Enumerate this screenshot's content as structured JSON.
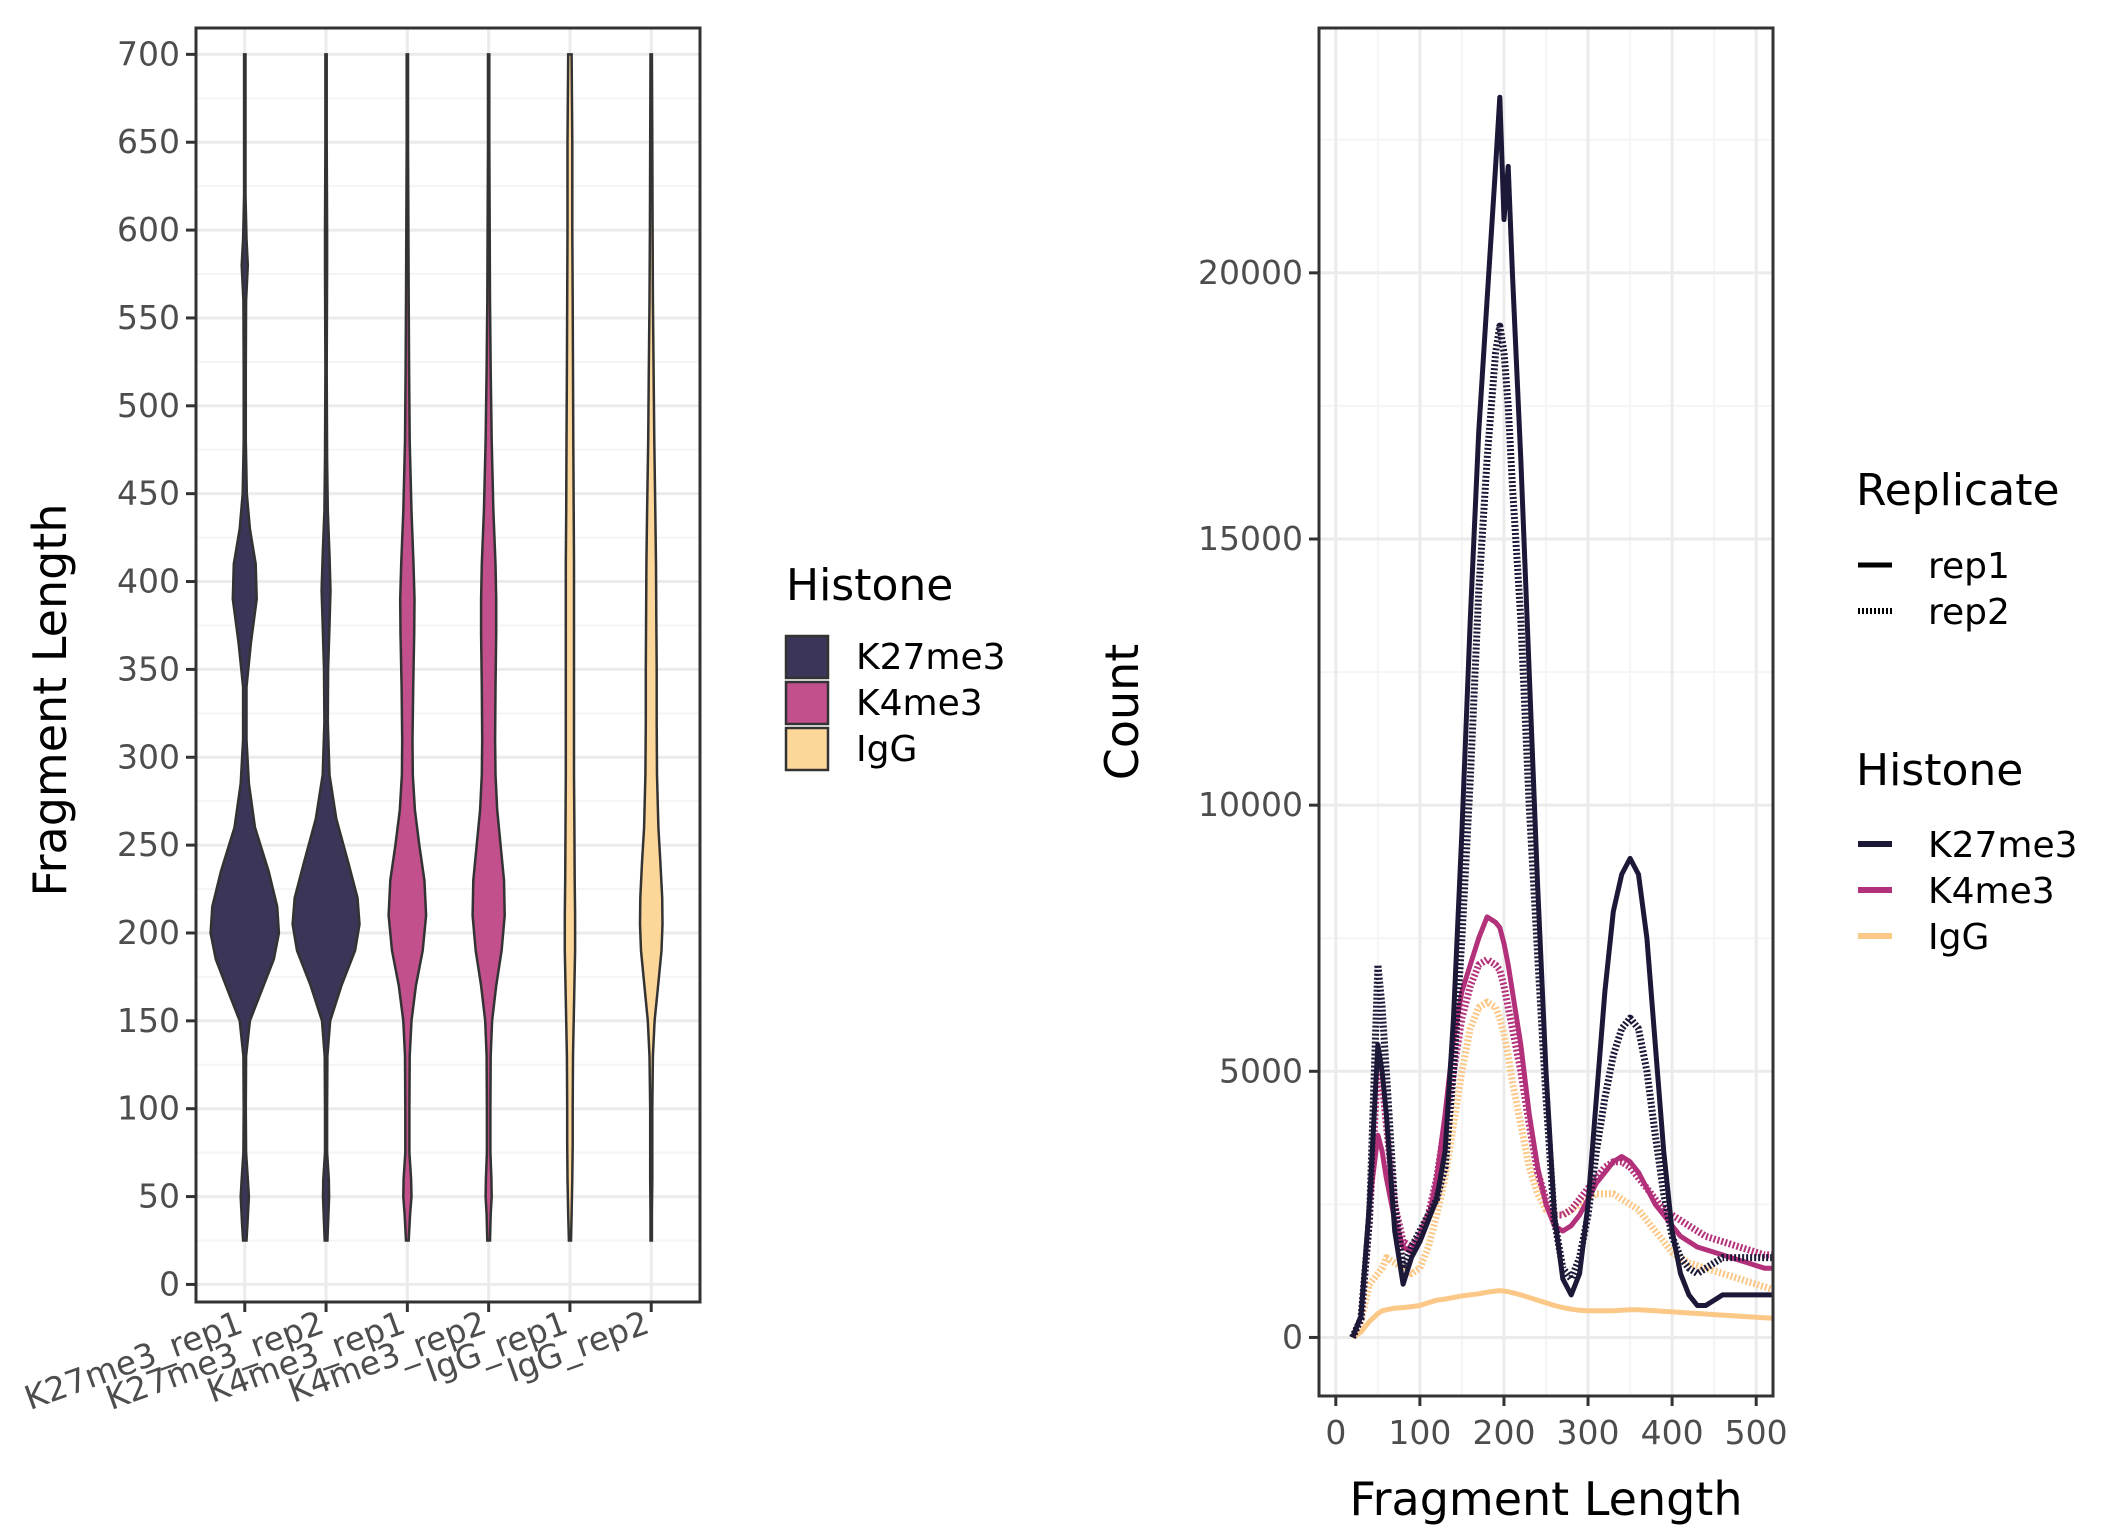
{
  "chart_data": [
    {
      "type": "violin",
      "ylabel": "Fragment Length",
      "xlabel": "",
      "ylim": [
        0,
        700
      ],
      "ylim_padded": [
        -10,
        715
      ],
      "yticks": [
        0,
        50,
        100,
        150,
        200,
        250,
        300,
        350,
        400,
        450,
        500,
        550,
        600,
        650,
        700
      ],
      "categories": [
        "K27me3_rep1",
        "K27me3_rep2",
        "K4me3_rep1",
        "K4me3_rep2",
        "IgG_rep1",
        "IgG_rep2"
      ],
      "category_histone": [
        "K27me3",
        "K27me3",
        "K4me3",
        "K4me3",
        "IgG",
        "IgG"
      ],
      "violin_range": [
        25,
        700
      ],
      "violin_max_halfwidth": 0.42,
      "violin_shapes": [
        [
          [
            25,
            0.05
          ],
          [
            35,
            0.08
          ],
          [
            50,
            0.12
          ],
          [
            60,
            0.09
          ],
          [
            75,
            0.04
          ],
          [
            100,
            0.03
          ],
          [
            130,
            0.04
          ],
          [
            150,
            0.15
          ],
          [
            165,
            0.45
          ],
          [
            185,
            0.85
          ],
          [
            200,
            1.0
          ],
          [
            215,
            0.95
          ],
          [
            235,
            0.7
          ],
          [
            260,
            0.3
          ],
          [
            285,
            0.12
          ],
          [
            310,
            0.05
          ],
          [
            340,
            0.05
          ],
          [
            365,
            0.18
          ],
          [
            390,
            0.35
          ],
          [
            410,
            0.32
          ],
          [
            430,
            0.15
          ],
          [
            450,
            0.06
          ],
          [
            480,
            0.03
          ],
          [
            520,
            0.03
          ],
          [
            560,
            0.04
          ],
          [
            580,
            0.09
          ],
          [
            595,
            0.05
          ],
          [
            620,
            0.02
          ],
          [
            650,
            0.02
          ],
          [
            700,
            0.02
          ]
        ],
        [
          [
            25,
            0.04
          ],
          [
            35,
            0.06
          ],
          [
            50,
            0.09
          ],
          [
            60,
            0.08
          ],
          [
            75,
            0.03
          ],
          [
            100,
            0.03
          ],
          [
            130,
            0.04
          ],
          [
            150,
            0.12
          ],
          [
            170,
            0.45
          ],
          [
            190,
            0.85
          ],
          [
            205,
            0.98
          ],
          [
            220,
            0.92
          ],
          [
            240,
            0.65
          ],
          [
            265,
            0.3
          ],
          [
            290,
            0.1
          ],
          [
            320,
            0.05
          ],
          [
            350,
            0.06
          ],
          [
            375,
            0.1
          ],
          [
            395,
            0.13
          ],
          [
            415,
            0.1
          ],
          [
            440,
            0.05
          ],
          [
            470,
            0.03
          ],
          [
            520,
            0.02
          ],
          [
            580,
            0.03
          ],
          [
            600,
            0.03
          ],
          [
            650,
            0.02
          ],
          [
            700,
            0.02
          ]
        ],
        [
          [
            25,
            0.04
          ],
          [
            40,
            0.08
          ],
          [
            50,
            0.12
          ],
          [
            60,
            0.11
          ],
          [
            75,
            0.06
          ],
          [
            100,
            0.06
          ],
          [
            130,
            0.07
          ],
          [
            150,
            0.12
          ],
          [
            170,
            0.25
          ],
          [
            190,
            0.45
          ],
          [
            210,
            0.55
          ],
          [
            230,
            0.5
          ],
          [
            250,
            0.35
          ],
          [
            270,
            0.22
          ],
          [
            290,
            0.16
          ],
          [
            310,
            0.15
          ],
          [
            340,
            0.17
          ],
          [
            370,
            0.2
          ],
          [
            390,
            0.21
          ],
          [
            410,
            0.18
          ],
          [
            440,
            0.12
          ],
          [
            480,
            0.07
          ],
          [
            520,
            0.05
          ],
          [
            560,
            0.04
          ],
          [
            600,
            0.03
          ],
          [
            650,
            0.02
          ],
          [
            700,
            0.02
          ]
        ],
        [
          [
            25,
            0.04
          ],
          [
            40,
            0.06
          ],
          [
            50,
            0.09
          ],
          [
            60,
            0.08
          ],
          [
            75,
            0.05
          ],
          [
            100,
            0.05
          ],
          [
            130,
            0.06
          ],
          [
            150,
            0.1
          ],
          [
            170,
            0.22
          ],
          [
            190,
            0.38
          ],
          [
            210,
            0.47
          ],
          [
            230,
            0.45
          ],
          [
            250,
            0.35
          ],
          [
            270,
            0.25
          ],
          [
            290,
            0.2
          ],
          [
            310,
            0.19
          ],
          [
            340,
            0.2
          ],
          [
            370,
            0.22
          ],
          [
            390,
            0.22
          ],
          [
            410,
            0.2
          ],
          [
            440,
            0.14
          ],
          [
            480,
            0.09
          ],
          [
            520,
            0.06
          ],
          [
            560,
            0.04
          ],
          [
            600,
            0.03
          ],
          [
            650,
            0.02
          ],
          [
            700,
            0.02
          ]
        ],
        [
          [
            25,
            0.03
          ],
          [
            40,
            0.05
          ],
          [
            60,
            0.07
          ],
          [
            80,
            0.08
          ],
          [
            100,
            0.08
          ],
          [
            130,
            0.09
          ],
          [
            150,
            0.11
          ],
          [
            170,
            0.13
          ],
          [
            190,
            0.15
          ],
          [
            210,
            0.15
          ],
          [
            230,
            0.14
          ],
          [
            260,
            0.13
          ],
          [
            290,
            0.12
          ],
          [
            320,
            0.12
          ],
          [
            350,
            0.12
          ],
          [
            380,
            0.12
          ],
          [
            410,
            0.12
          ],
          [
            440,
            0.11
          ],
          [
            480,
            0.1
          ],
          [
            520,
            0.09
          ],
          [
            560,
            0.08
          ],
          [
            600,
            0.07
          ],
          [
            650,
            0.07
          ],
          [
            700,
            0.05
          ]
        ],
        [
          [
            25,
            0.02
          ],
          [
            40,
            0.02
          ],
          [
            60,
            0.03
          ],
          [
            80,
            0.03
          ],
          [
            100,
            0.03
          ],
          [
            130,
            0.05
          ],
          [
            150,
            0.1
          ],
          [
            170,
            0.2
          ],
          [
            190,
            0.3
          ],
          [
            205,
            0.33
          ],
          [
            220,
            0.32
          ],
          [
            240,
            0.27
          ],
          [
            260,
            0.21
          ],
          [
            290,
            0.17
          ],
          [
            320,
            0.16
          ],
          [
            350,
            0.16
          ],
          [
            380,
            0.15
          ],
          [
            410,
            0.14
          ],
          [
            440,
            0.12
          ],
          [
            480,
            0.09
          ],
          [
            520,
            0.07
          ],
          [
            560,
            0.05
          ],
          [
            600,
            0.04
          ],
          [
            650,
            0.03
          ],
          [
            700,
            0.02
          ]
        ]
      ],
      "legend": {
        "title": "Histone",
        "items": [
          {
            "label": "K27me3",
            "color": "#3b3558"
          },
          {
            "label": "K4me3",
            "color": "#c1508d"
          },
          {
            "label": "IgG",
            "color": "#fdd79a"
          }
        ]
      },
      "grid": true
    },
    {
      "type": "line",
      "xlabel": "Fragment Length",
      "ylabel": "Count",
      "xlim": [
        -20,
        520
      ],
      "ylim": [
        -1100,
        24600
      ],
      "xticks": [
        0,
        100,
        200,
        300,
        400,
        500
      ],
      "yticks": [
        0,
        5000,
        10000,
        15000,
        20000
      ],
      "x": [
        20,
        30,
        40,
        50,
        55,
        60,
        70,
        80,
        90,
        100,
        110,
        120,
        130,
        140,
        150,
        160,
        170,
        180,
        190,
        195,
        200,
        205,
        210,
        220,
        230,
        240,
        250,
        260,
        270,
        280,
        290,
        300,
        310,
        320,
        330,
        340,
        350,
        360,
        370,
        380,
        390,
        400,
        410,
        420,
        430,
        440,
        450,
        460,
        470,
        480,
        490,
        500,
        510,
        520
      ],
      "series": [
        {
          "histone": "K27me3",
          "replicate": "rep1",
          "color": "#1c1838",
          "dash": "solid",
          "values": [
            0,
            400,
            2500,
            5500,
            5000,
            4200,
            2000,
            1000,
            1500,
            1800,
            2200,
            2600,
            3500,
            6000,
            9500,
            13500,
            17000,
            19500,
            22000,
            23300,
            21000,
            22000,
            20000,
            16500,
            12500,
            8500,
            5000,
            2300,
            1100,
            800,
            1200,
            2500,
            4500,
            6500,
            8000,
            8700,
            9000,
            8700,
            7500,
            5500,
            3500,
            2000,
            1200,
            800,
            600,
            600,
            700,
            800,
            800,
            800,
            800,
            800,
            800,
            800
          ]
        },
        {
          "histone": "K27me3",
          "replicate": "rep2",
          "color": "#1c1838",
          "dash": "dotted",
          "values": [
            0,
            350,
            2200,
            7000,
            6200,
            5000,
            2500,
            1300,
            1700,
            2000,
            2300,
            2600,
            3200,
            5000,
            7500,
            10500,
            14000,
            16500,
            18500,
            19000,
            18500,
            17500,
            16000,
            13500,
            10000,
            7200,
            4500,
            2200,
            1300,
            1100,
            1500,
            2300,
            3500,
            4500,
            5300,
            5800,
            6000,
            5800,
            5000,
            3800,
            2700,
            1900,
            1500,
            1300,
            1200,
            1300,
            1400,
            1500,
            1500,
            1500,
            1500,
            1500,
            1500,
            1500
          ]
        },
        {
          "histone": "K4me3",
          "replicate": "rep1",
          "color": "#b3317a",
          "dash": "solid",
          "values": [
            0,
            400,
            2500,
            3800,
            3500,
            3000,
            2200,
            1700,
            1600,
            1800,
            2200,
            3000,
            4200,
            5600,
            6500,
            7000,
            7500,
            7900,
            7800,
            7700,
            7400,
            7000,
            6500,
            5500,
            4200,
            3200,
            2500,
            2100,
            2000,
            2100,
            2300,
            2600,
            2900,
            3100,
            3300,
            3400,
            3300,
            3100,
            2800,
            2500,
            2300,
            2100,
            1900,
            1800,
            1700,
            1650,
            1600,
            1550,
            1500,
            1450,
            1400,
            1350,
            1300,
            1300
          ]
        },
        {
          "histone": "K4me3",
          "replicate": "rep2",
          "color": "#b3317a",
          "dash": "dotted",
          "values": [
            0,
            350,
            2200,
            5200,
            4800,
            4000,
            2500,
            1800,
            1700,
            1900,
            2300,
            3000,
            4000,
            5000,
            6000,
            6600,
            7000,
            7100,
            7000,
            6900,
            6600,
            6200,
            5800,
            5000,
            4000,
            3100,
            2600,
            2300,
            2300,
            2400,
            2600,
            2800,
            3000,
            3200,
            3300,
            3300,
            3200,
            3000,
            2800,
            2600,
            2400,
            2300,
            2200,
            2100,
            2000,
            1900,
            1850,
            1800,
            1750,
            1700,
            1650,
            1600,
            1550,
            1550
          ]
        },
        {
          "histone": "IgG",
          "replicate": "rep1",
          "color": "#fcc888",
          "dash": "solid",
          "values": [
            0,
            100,
            300,
            450,
            500,
            520,
            550,
            560,
            580,
            600,
            650,
            700,
            720,
            750,
            780,
            800,
            820,
            850,
            870,
            880,
            870,
            860,
            840,
            800,
            750,
            700,
            650,
            600,
            560,
            530,
            510,
            500,
            500,
            500,
            500,
            510,
            520,
            520,
            510,
            500,
            490,
            480,
            470,
            460,
            450,
            440,
            430,
            420,
            410,
            400,
            390,
            380,
            370,
            360
          ]
        },
        {
          "histone": "IgG",
          "replicate": "rep2",
          "color": "#fcc888",
          "dash": "dotted",
          "values": [
            0,
            300,
            1000,
            1200,
            1300,
            1500,
            1400,
            1300,
            1200,
            1300,
            1700,
            2300,
            3000,
            4000,
            5000,
            5800,
            6200,
            6300,
            6200,
            6000,
            5700,
            5300,
            4800,
            4000,
            3200,
            2700,
            2400,
            2300,
            2300,
            2400,
            2500,
            2600,
            2700,
            2700,
            2700,
            2600,
            2500,
            2400,
            2200,
            2000,
            1800,
            1600,
            1500,
            1400,
            1350,
            1300,
            1250,
            1200,
            1150,
            1100,
            1050,
            1000,
            950,
            900
          ]
        }
      ],
      "legends": [
        {
          "title": "Replicate",
          "items": [
            {
              "label": "rep1",
              "dash": "solid",
              "color": "#000000"
            },
            {
              "label": "rep2",
              "dash": "dotted",
              "color": "#000000"
            }
          ]
        },
        {
          "title": "Histone",
          "items": [
            {
              "label": "K27me3",
              "color": "#1c1838"
            },
            {
              "label": "K4me3",
              "color": "#b3317a"
            },
            {
              "label": "IgG",
              "color": "#fcc888"
            }
          ]
        }
      ],
      "grid": true
    }
  ],
  "colors": {
    "panel_border": "#333333",
    "grid_major": "#ebebeb",
    "grid_minor": "#f5f5f5",
    "tick_text": "#4d4d4d"
  }
}
